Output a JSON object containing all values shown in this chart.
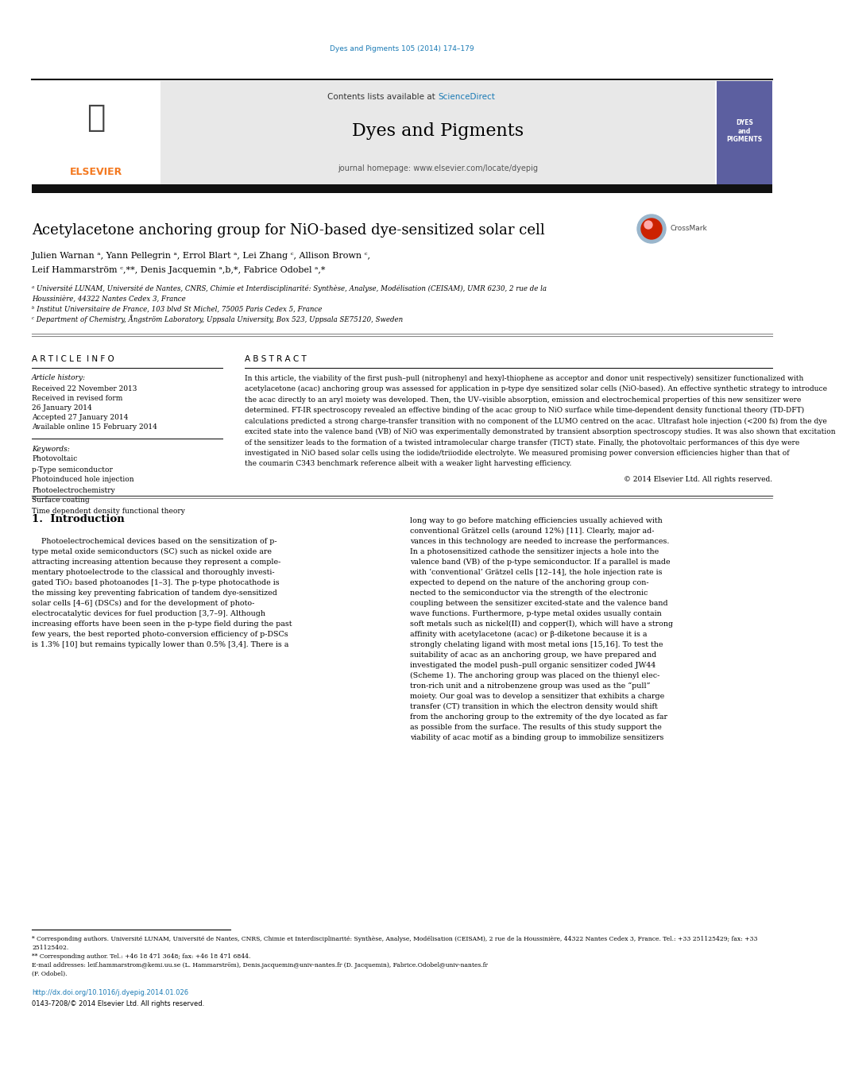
{
  "page_width": 9.92,
  "page_height": 13.23,
  "bg_color": "#ffffff",
  "journal_ref_color": "#1a7ab5",
  "journal_ref": "Dyes and Pigments 105 (2014) 174–179",
  "header_bg": "#e8e8e8",
  "header_text": "Contents lists available at ",
  "sciencedirect_text": "ScienceDirect",
  "sciencedirect_color": "#1a7ab5",
  "journal_title": "Dyes and Pigments",
  "journal_homepage": "journal homepage: www.elsevier.com/locate/dyepig",
  "paper_title": "Acetylacetone anchoring group for NiO-based dye-sensitized solar cell",
  "author_line1": "Julien Warnan ᵃ, Yann Pellegrin ᵃ, Errol Blart ᵃ, Lei Zhang ᶜ, Allison Brown ᶜ,",
  "author_line2": "Leif Hammarström ᶜ,**, Denis Jacquemin ᵃ,b,*, Fabrice Odobel ᵃ,*",
  "affil_a": "ᵃ Université LUNAM, Université de Nantes, CNRS, Chimie et Interdisciplinarité: Synthèse, Analyse, Modélisation (CEISAM), UMR 6230, 2 rue de la",
  "affil_a2": "Houssinière, 44322 Nantes Cedex 3, France",
  "affil_b": "ᵇ Institut Universitaire de France, 103 blvd St Michel, 75005 Paris Cedex 5, France",
  "affil_c": "ᶜ Department of Chemistry, Ångström Laboratory, Uppsala University, Box 523, Uppsala SE75120, Sweden",
  "article_info_header": "A R T I C L E  I N F O",
  "abstract_header": "A B S T R A C T",
  "article_history_label": "Article history:",
  "received": "Received 22 November 2013",
  "received_revised1": "Received in revised form",
  "received_revised2": "26 January 2014",
  "accepted": "Accepted 27 January 2014",
  "available": "Available online 15 February 2014",
  "keywords_label": "Keywords:",
  "keywords": [
    "Photovoltaic",
    "p-Type semiconductor",
    "Photoinduced hole injection",
    "Photoelectrochemistry",
    "Surface coating",
    "Time dependent density functional theory"
  ],
  "abstract_lines": [
    "In this article, the viability of the first push–pull (nitrophenyl and hexyl-thiophene as acceptor and donor unit respectively) sensitizer functionalized with",
    "acetylacetone (acac) anchoring group was assessed for application in p-type dye sensitized solar cells (NiO-based). An effective synthetic strategy to introduce",
    "the acac directly to an aryl moiety was developed. Then, the UV–visible absorption, emission and electrochemical properties of this new sensitizer were",
    "determined. FT-IR spectroscopy revealed an effective binding of the acac group to NiO surface while time-dependent density functional theory (TD-DFT)",
    "calculations predicted a strong charge-transfer transition with no component of the LUMO centred on the acac. Ultrafast hole injection (<200 fs) from the dye",
    "excited state into the valence band (VB) of NiO was experimentally demonstrated by transient absorption spectroscopy studies. It was also shown that excitation",
    "of the sensitizer leads to the formation of a twisted intramolecular charge transfer (TICT) state. Finally, the photovoltaic performances of this dye were",
    "investigated in NiO based solar cells using the iodide/triiodide electrolyte. We measured promising power conversion efficiencies higher than that of",
    "the coumarin C343 benchmark reference albeit with a weaker light harvesting efficiency."
  ],
  "copyright": "© 2014 Elsevier Ltd. All rights reserved.",
  "intro_header": "1.  Introduction",
  "col1_intro_lines": [
    "    Photoelectrochemical devices based on the sensitization of p-",
    "type metal oxide semiconductors (SC) such as nickel oxide are",
    "attracting increasing attention because they represent a comple-",
    "mentary photoelectrode to the classical and thoroughly investi-",
    "gated TiO₂ based photoanodes [1–3]. The p-type photocathode is",
    "the missing key preventing fabrication of tandem dye-sensitized",
    "solar cells [4–6] (DSCs) and for the development of photo-",
    "electrocatalytic devices for fuel production [3,7–9]. Although",
    "increasing efforts have been seen in the p-type field during the past",
    "few years, the best reported photo-conversion efficiency of p-DSCs",
    "is 1.3% [10] but remains typically lower than 0.5% [3,4]. There is a"
  ],
  "col2_intro_lines": [
    "long way to go before matching efficiencies usually achieved with",
    "conventional Grätzel cells (around 12%) [11]. Clearly, major ad-",
    "vances in this technology are needed to increase the performances.",
    "In a photosensitized cathode the sensitizer injects a hole into the",
    "valence band (VB) of the p-type semiconductor. If a parallel is made",
    "with ‘conventional’ Grätzel cells [12–14], the hole injection rate is",
    "expected to depend on the nature of the anchoring group con-",
    "nected to the semiconductor via the strength of the electronic",
    "coupling between the sensitizer excited-state and the valence band",
    "wave functions. Furthermore, p-type metal oxides usually contain",
    "soft metals such as nickel(II) and copper(I), which will have a strong",
    "affinity with acetylacetone (acac) or β-diketone because it is a",
    "strongly chelating ligand with most metal ions [15,16]. To test the",
    "suitability of acac as an anchoring group, we have prepared and",
    "investigated the model push–pull organic sensitizer coded JW44",
    "(Scheme 1). The anchoring group was placed on the thienyl elec-",
    "tron-rich unit and a nitrobenzene group was used as the “pull”",
    "moiety. Our goal was to develop a sensitizer that exhibits a charge",
    "transfer (CT) transition in which the electron density would shift",
    "from the anchoring group to the extremity of the dye located as far",
    "as possible from the surface. The results of this study support the",
    "viability of acac motif as a binding group to immobilize sensitizers"
  ],
  "footnote1a": "* Corresponding authors. Université LUNAM, Université de Nantes, CNRS, Chimie et Interdisciplinarité: Synthèse, Analyse, Modélisation (CEISAM), 2 rue de la Houssinière, 44322 Nantes Cedex 3, France. Tel.: +33 251125429; fax: +33",
  "footnote1b": "251125402.",
  "footnote2": "** Corresponding author. Tel.: +46 18 471 3648; fax: +46 18 471 6844.",
  "footnote3a": "E-mail addresses: leif.hammarstrom@kemi.uu.se (L. Hammarström), Denis.jacquemin@univ-nantes.fr (D. Jacquemin), Fabrice.Odobel@univ-nantes.fr",
  "footnote3b": "(F. Odobel).",
  "doi": "http://dx.doi.org/10.1016/j.dyepig.2014.01.026",
  "issn": "0143-7208/© 2014 Elsevier Ltd. All rights reserved.",
  "black_bar_color": "#111111",
  "orange_elsevier_color": "#f47920",
  "link_color": "#1a7ab5",
  "right_box_color": "#5c5fa0"
}
